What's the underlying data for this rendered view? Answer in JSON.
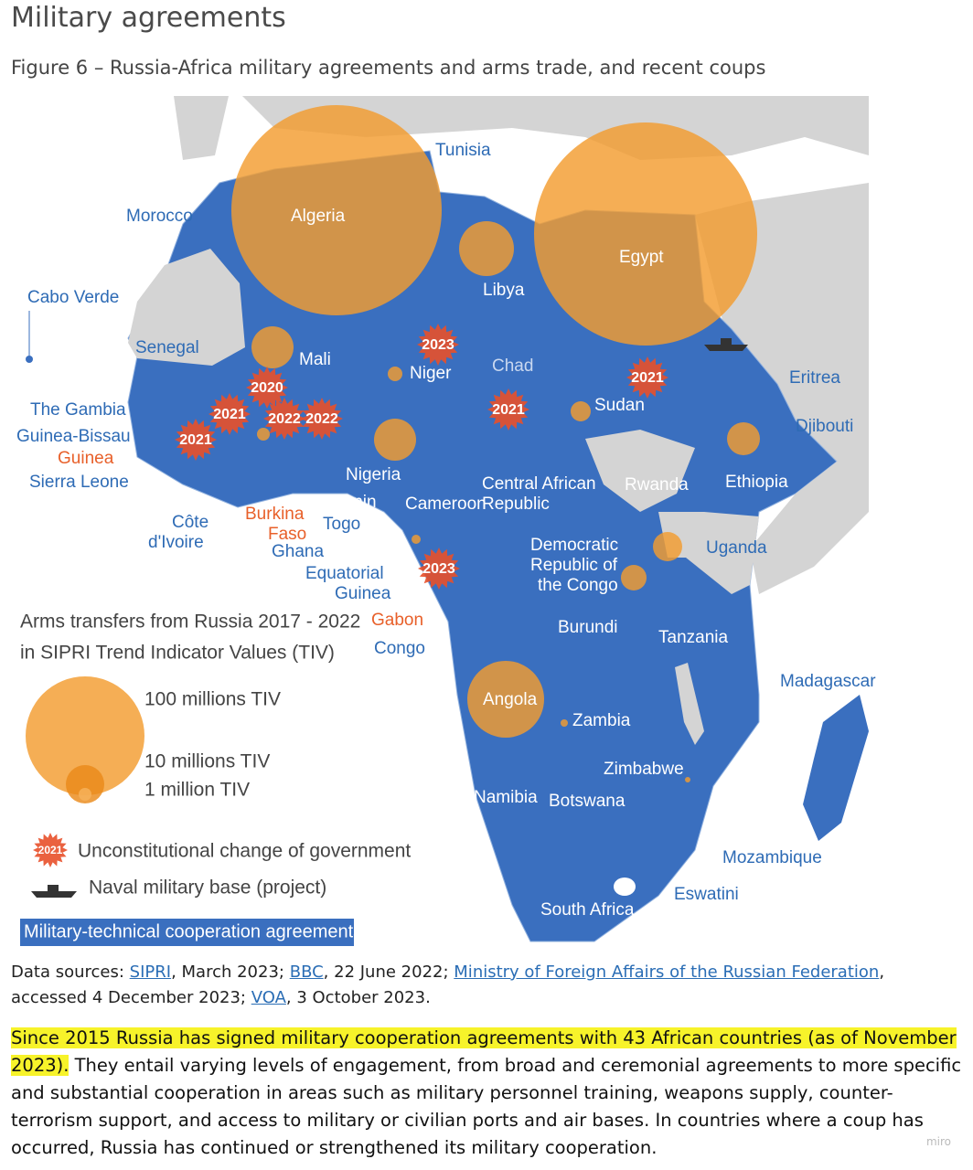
{
  "heading": "Military agreements",
  "figure_title": "Figure 6 – Russia-Africa military agreements and arms trade, and recent coups",
  "map": {
    "countries": [
      [
        "Tunisia"
      ],
      [
        "Morocco"
      ],
      [
        "Algeria"
      ],
      [
        "Libya"
      ],
      [
        "Egypt"
      ],
      [
        "Cabo Verde"
      ],
      [
        "Senegal"
      ],
      [
        "Mali"
      ],
      [
        "Niger"
      ],
      [
        "Chad"
      ],
      [
        "Sudan"
      ],
      [
        "Eritrea"
      ],
      [
        "Djibouti"
      ],
      [
        "The Gambia"
      ],
      [
        "Guinea-Bissau"
      ],
      [
        "Guinea"
      ],
      [
        "Sierra Leone"
      ],
      [
        "Nigeria"
      ],
      [
        "Central African",
        "Republic"
      ],
      [
        "Rwanda"
      ],
      [
        "Ethiopia"
      ],
      [
        "Côte",
        "d'Ivoire"
      ],
      [
        "Burkina",
        "Faso"
      ],
      [
        "Benin"
      ],
      [
        "Togo"
      ],
      [
        "Ghana"
      ],
      [
        "Cameroon"
      ],
      [
        "Equatorial",
        "Guinea"
      ],
      [
        "Democratic",
        "Republic of",
        "the Congo"
      ],
      [
        "Uganda"
      ],
      [
        "Gabon"
      ],
      [
        "Congo"
      ],
      [
        "Burundi"
      ],
      [
        "Tanzania"
      ],
      [
        "Madagascar"
      ],
      [
        "Angola"
      ],
      [
        "Zambia"
      ],
      [
        "Zimbabwe"
      ],
      [
        "Namibia"
      ],
      [
        "Botswana"
      ],
      [
        "Mozambique"
      ],
      [
        "Eswatini"
      ],
      [
        "South Africa"
      ]
    ],
    "coups": [
      "2023",
      "2020",
      "2021",
      "2021",
      "2022",
      "2022",
      "2021",
      "2021",
      "2023"
    ]
  },
  "legend": {
    "arms_title": [
      "Arms transfers from Russia 2017 - 2022",
      "in SIPRI Trend Indicator Values (TIV)"
    ],
    "sizes": [
      "100 millions TIV",
      "10 millions TIV",
      "1 million TIV"
    ],
    "coup_stamp": "2021",
    "coup": "Unconstitutional change of government",
    "naval": "Naval military base (project)",
    "agreements": "Military-technical cooperation agreements"
  },
  "sources": {
    "label": "Data sources:",
    "items": [
      {
        "link": "SIPRI",
        "text": ", March 2023;"
      },
      {
        "link": "BBC",
        "text": ", 22 June 2022;"
      },
      {
        "link": "Ministry of Foreign Affairs of the Russian Federation",
        "text": ", accessed 4 December 2023;"
      },
      {
        "link": "VOA",
        "text": ", 3 October 2023."
      }
    ]
  },
  "paragraph": {
    "highlight": "Since 2015 Russia has signed military cooperation agreements with 43 African countries (as of November 2023).",
    "rest": "They entail varying levels of engagement, from broad and ceremonial agreements to more specific and substantial cooperation in areas such as military personnel training, weapons supply, counter-terrorism support, and access to military or civilian ports and air bases. In countries where a coup has occurred, Russia has continued or strengthened its military cooperation."
  },
  "watermark": "miro"
}
